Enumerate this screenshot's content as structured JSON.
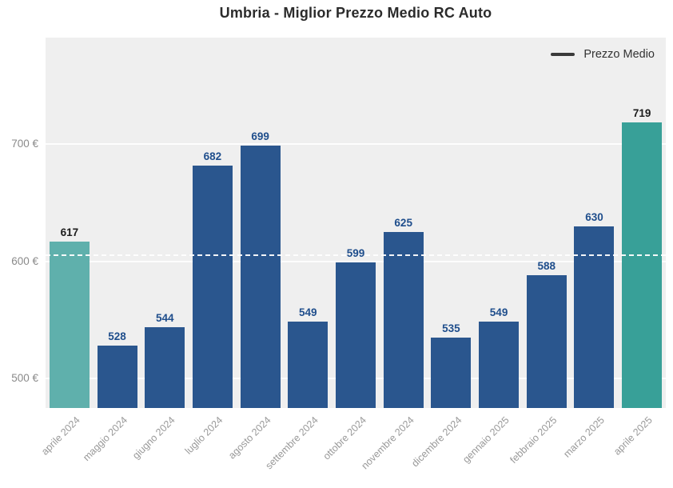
{
  "title": "Umbria - Miglior Prezzo Medio RC Auto",
  "legend": {
    "label": "Prezzo Medio"
  },
  "chart_data": {
    "type": "bar",
    "title": "Umbria - Miglior Prezzo Medio RC Auto",
    "series_name": "Prezzo Medio",
    "unit": "€",
    "categories": [
      "aprile 2024",
      "maggio 2024",
      "giugno 2024",
      "luglio 2024",
      "agosto 2024",
      "settembre 2024",
      "ottobre 2024",
      "novembre 2024",
      "dicembre 2024",
      "gennaio 2025",
      "febbraio 2025",
      "marzo 2025",
      "aprile 2025"
    ],
    "values": [
      617,
      528,
      544,
      682,
      699,
      549,
      599,
      625,
      535,
      549,
      588,
      630,
      719
    ],
    "xlabel": "",
    "ylabel": "",
    "ylim": [
      475,
      791
    ],
    "yticks": [
      {
        "value": 500,
        "label": "500 €"
      },
      {
        "value": 600,
        "label": "600 €"
      },
      {
        "value": 700,
        "label": "700 €"
      }
    ],
    "grid": true,
    "legend_position": "top-right",
    "mean_line": {
      "style": "dashed",
      "note": "horizontal dashed line at mean of values"
    }
  },
  "colors": {
    "plot_bg": "#efefef",
    "bar_default": "#2a568e",
    "bar_first": "#5fb0ac",
    "bar_last": "#38a098",
    "value_label_blue": "#1f4e8c",
    "value_label_dark": "#1c1c1c",
    "y_tick_label": "#8a8a8a",
    "x_tick_label": "#999999",
    "legend_swatch": "#3a3a3a",
    "gridline": "#ffffff",
    "mean_line": "#ffffff"
  }
}
